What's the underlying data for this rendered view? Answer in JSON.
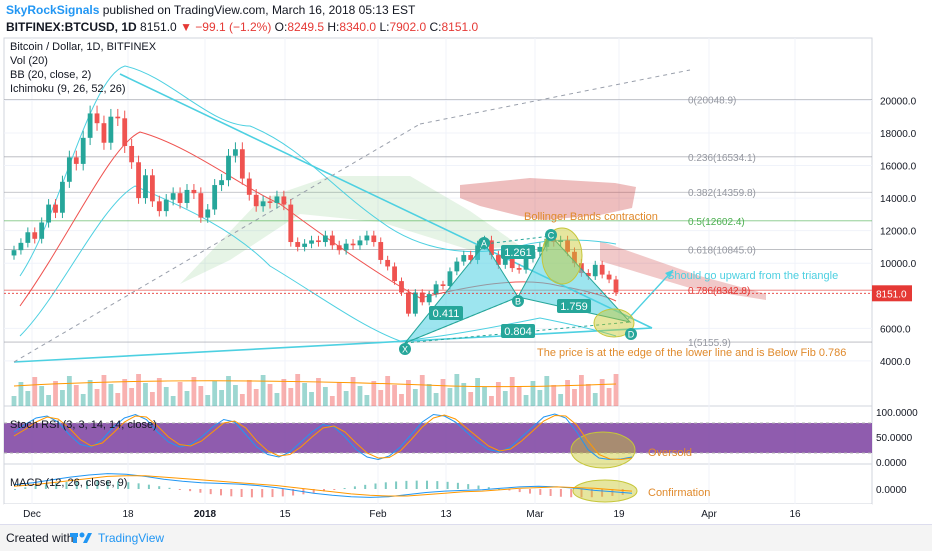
{
  "header": {
    "publisher": "SkyRockSignals",
    "published_text": "published on TradingView.com, March 16, 2018 05:13 EST",
    "symbol": "BITFINEX:BTCUSD, 1D",
    "last": "8151.0",
    "change": "▼ −99.1 (−1.2%)",
    "o_label": "O:",
    "o_value": "8249.5",
    "h_label": "H:",
    "h_value": "8340.0",
    "l_label": "L:",
    "l_value": "7902.0",
    "c_label": "C:",
    "c_value": "8151.0"
  },
  "legend": {
    "title": "Bitcoin / Dollar, 1D, BITFINEX",
    "vol": "Vol (20)",
    "bb": "BB (20, close, 2)",
    "ichimoku": "Ichimoku (9, 26, 52, 26)"
  },
  "footer": {
    "created_with": "Created with",
    "brand": "TradingView"
  },
  "colors": {
    "up": "#26a69a",
    "down": "#ef5350",
    "trend": "#4dd0e1",
    "fib": "#787b86",
    "kumo": "#c62828",
    "stoch_bg": "#7b3fa0",
    "highlight": "#c6c63a",
    "note": "#e65100",
    "price_tag": "#e53935"
  },
  "chart_data": [
    {
      "type": "candlestick",
      "title": "Bitcoin / Dollar, 1D, BITFINEX",
      "x_ticks": [
        "Dec",
        "18",
        "2018",
        "15",
        "Feb",
        "13",
        "Mar",
        "19",
        "Apr",
        "16"
      ],
      "y_ticks": [
        "20000.0",
        "18000.0",
        "16000.0",
        "14000.0",
        "12000.0",
        "10000.0",
        "6000.0",
        "4000.0"
      ],
      "ylim": [
        3600,
        21300
      ],
      "last_price_tag": "8151.0",
      "closes": [
        10800,
        11250,
        11900,
        11500,
        12500,
        13600,
        13100,
        15000,
        16500,
        16100,
        17700,
        19200,
        18600,
        17400,
        19000,
        18900,
        17200,
        16200,
        14000,
        15400,
        13800,
        13200,
        13900,
        14300,
        13700,
        14500,
        14300,
        12800,
        13300,
        14800,
        15100,
        16600,
        17000,
        15200,
        14200,
        13500,
        13800,
        13700,
        14100,
        13600,
        11300,
        11000,
        11200,
        11400,
        11300,
        11700,
        11100,
        10800,
        11200,
        11100,
        11400,
        11700,
        11300,
        10200,
        9800,
        8900,
        8200,
        6900,
        8200,
        7600,
        8100,
        8700,
        8600,
        9500,
        10100,
        10500,
        10200,
        11100,
        11400,
        10500,
        9900,
        10300,
        9700,
        9600,
        10300,
        10700,
        11000,
        11500,
        11300,
        11400,
        10700,
        10000,
        9400,
        9200,
        9900,
        9300,
        9000,
        8200
      ],
      "fib_levels": [
        {
          "label": "0(20048.9)",
          "value": 20048.9
        },
        {
          "label": "0.236(16534.1)",
          "value": 16534.1
        },
        {
          "label": "0.382(14359.8)",
          "value": 14359.8
        },
        {
          "label": "0.5(12602.4)",
          "value": 12602.4
        },
        {
          "label": "0.618(10845.0)",
          "value": 10845.0
        },
        {
          "label": "0.786(8342.8)",
          "value": 8342.8
        },
        {
          "label": "1(5155.9)",
          "value": 5155.9
        }
      ],
      "pattern_points": [
        "X",
        "A",
        "B",
        "C",
        "D"
      ],
      "pattern_ratios": [
        "0.411",
        "1.261",
        "1.759",
        "0.804"
      ],
      "annotations": [
        "Bollinger Bands contraction",
        "Should go upward from the triangle",
        "The price is at the edge of the lower line and is Below Fib 0.786"
      ]
    },
    {
      "type": "line",
      "title": "Stoch RSI (3, 3, 14, 14, close)",
      "y_ticks": [
        "100.0000",
        "50.0000",
        "0.0000"
      ],
      "ylim": [
        0,
        100
      ],
      "series": [
        {
          "values": [
            60,
            75,
            88,
            92,
            80,
            55,
            35,
            30,
            45,
            70,
            88,
            95,
            85,
            60,
            40,
            30,
            35,
            50,
            70,
            85,
            80,
            55,
            30,
            15,
            10,
            20,
            40,
            60,
            75,
            70,
            50,
            25,
            10,
            5,
            12,
            30,
            55,
            80,
            95,
            92,
            80,
            60,
            40,
            25,
            20,
            30,
            50,
            70,
            90,
            96,
            88,
            60,
            25,
            8,
            5,
            6,
            10
          ]
        },
        {
          "values": [
            52,
            65,
            80,
            90,
            86,
            68,
            45,
            32,
            38,
            58,
            80,
            92,
            90,
            72,
            50,
            35,
            32,
            42,
            60,
            78,
            82,
            68,
            42,
            22,
            12,
            15,
            30,
            50,
            68,
            72,
            60,
            38,
            18,
            8,
            9,
            22,
            45,
            70,
            88,
            94,
            86,
            68,
            50,
            32,
            22,
            26,
            42,
            62,
            82,
            93,
            92,
            74,
            42,
            15,
            6,
            5,
            8
          ]
        }
      ],
      "annotation": "Oversold"
    },
    {
      "type": "line",
      "title": "MACD (12, 26, close, 9)",
      "y_ticks": [
        "0.0000"
      ],
      "series": [
        {
          "values": [
            0.6,
            0.9,
            1.3,
            1.7,
            2.0,
            2.2,
            2.1,
            1.8,
            1.4,
            1.1,
            0.9,
            0.8,
            0.7,
            0.5,
            0.2,
            -0.2,
            -0.6,
            -0.9,
            -1.1,
            -1.2,
            -1.1,
            -0.8,
            -0.5,
            -0.3,
            -0.2,
            -0.1,
            0.1,
            0.3,
            0.4,
            0.3,
            0.1,
            -0.2,
            -0.4,
            -0.6
          ]
        },
        {
          "values": [
            0.4,
            0.6,
            0.9,
            1.2,
            1.5,
            1.8,
            1.9,
            1.9,
            1.7,
            1.5,
            1.3,
            1.1,
            0.9,
            0.7,
            0.5,
            0.2,
            -0.1,
            -0.4,
            -0.7,
            -0.9,
            -1.0,
            -1.0,
            -0.8,
            -0.6,
            -0.4,
            -0.3,
            -0.1,
            0.1,
            0.2,
            0.3,
            0.2,
            0.1,
            -0.1,
            -0.3
          ]
        }
      ],
      "annotation": "Confirmation"
    }
  ]
}
